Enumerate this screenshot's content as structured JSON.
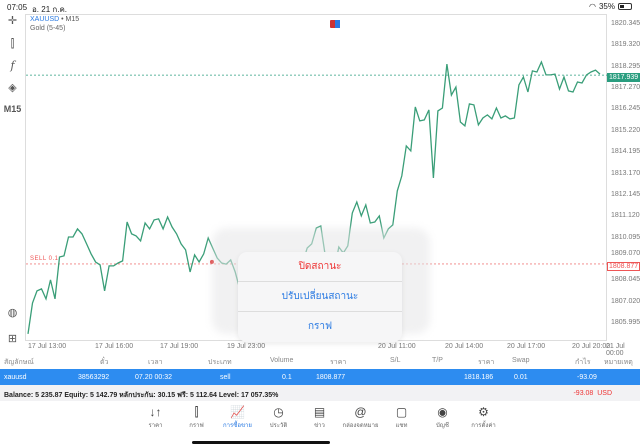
{
  "status": {
    "time": "07:05",
    "date": "อ. 21 ก.ค.",
    "battery": "35%"
  },
  "toolbar": {
    "timeframe": "M15",
    "function_label": "f"
  },
  "chart_header": {
    "symbol": "XAUUSD",
    "separator": " • ",
    "timeframe": "M15",
    "description": "Gold (5-45)"
  },
  "price_axis": [
    "1820.345",
    "1819.320",
    "1818.295",
    "1817.270",
    "1816.245",
    "1815.220",
    "1814.195",
    "1813.170",
    "1812.145",
    "1811.120",
    "1810.095",
    "1809.070",
    "1808.045",
    "1807.020",
    "1805.995"
  ],
  "last_price": "1817.939",
  "sell_price": "1808.877",
  "sell_label": "SELL 0.1",
  "time_axis": [
    "17 Jul 13:00",
    "17 Jul 16:00",
    "17 Jul 19:00",
    "19 Jul 23:00",
    "20 Jul 11:00",
    "20 Jul 14:00",
    "20 Jul 17:00",
    "20 Jul 20:00",
    "21 Jul 00:00"
  ],
  "chart_data": {
    "type": "line",
    "title": "XAUUSD M15",
    "ylim": [
      1805.2,
      1821.5
    ],
    "last": 1817.939,
    "sell_level": 1808.877,
    "values": [
      1805.52,
      1807.0,
      1807.58,
      1807.68,
      1807.2,
      1808.11,
      1807.2,
      1809.21,
      1809.26,
      1810.17,
      1810.17,
      1810.56,
      1810.32,
      1809.84,
      1809.36,
      1808.97,
      1808.83,
      1807.58,
      1808.78,
      1808.78,
      1808.92,
      1809.02,
      1810.89,
      1810.32,
      1810.22,
      1809.98,
      1810.84,
      1810.56,
      1810.99,
      1811.04,
      1810.56,
      1811.13,
      1810.65,
      1810.32,
      1809.84,
      1809.55,
      1808.49,
      1809.31,
      1808.97,
      1809.36,
      1810.12,
      1809.64,
      1809.16,
      1808.92,
      1808.87,
      1809.07,
      1808.49,
      1807.68,
      1806.14,
      1808.06,
      1807.29,
      1807.2,
      1806.72,
      1807.1,
      1806.72,
      1807.29,
      1807.1,
      1807.58,
      1807.34,
      1807.82,
      1808.3,
      1808.92,
      1809.64,
      1809.84,
      1810.6,
      1810.7,
      1809.26,
      1809.4,
      1808.54,
      1809.69,
      1809.4,
      1809.74,
      1811.32,
      1811.85,
      1811.18,
      1811.71,
      1810.84,
      1810.89,
      1811.18,
      1810.12,
      1810.56,
      1810.75,
      1812.38,
      1813.1,
      1814.54,
      1814.3,
      1816.41,
      1815.74,
      1815.79,
      1816.27,
      1813.0,
      1816.22,
      1816.36,
      1818.47,
      1816.98,
      1817.37,
      1815.69,
      1815.5,
      1816.56,
      1816.51,
      1815.55,
      1815.88,
      1816.03,
      1815.84,
      1816.36,
      1815.88,
      1815.98,
      1815.84,
      1815.88,
      1817.47,
      1817.85,
      1817.13,
      1818.14,
      1818.09,
      1818.57,
      1817.95,
      1817.95,
      1817.99,
      1817.27,
      1817.85,
      1817.18,
      1817.13,
      1817.61,
      1817.56,
      1817.95,
      1818.09,
      1818.18,
      1817.99
    ]
  },
  "table": {
    "headers": [
      "สัญลักษณ์",
      "ตั๋ว",
      "เวลา",
      "ประเภท",
      "Volume",
      "ราคา",
      "S/L",
      "T/P",
      "ราคา",
      "Swap",
      "กำไร",
      "หมายเหตุ"
    ],
    "row": {
      "symbol": "xauusd",
      "ticket": "38563292",
      "time": "07.20 00:32",
      "type": "sell",
      "volume": "0.1",
      "open_price": "1808.877",
      "current_price": "1818.186",
      "swap": "0.01",
      "profit": "-93.09"
    }
  },
  "balance": {
    "text": "Balance: 5 235.87 Equity: 5 142.79 หลักประกัน: 30.15 ฟรี: 5 112.64 Level: 17 057.35%",
    "pl": "-93.08",
    "currency": "USD"
  },
  "popup": {
    "close": "ปิดสถานะ",
    "modify": "ปรับเปลี่ยนสถานะ",
    "chart": "กราฟ"
  },
  "tabs": [
    {
      "label": "ราคา",
      "icon": "↓↑"
    },
    {
      "label": "กราฟ",
      "icon": "⫿"
    },
    {
      "label": "การซื้อขาย",
      "icon": "📈"
    },
    {
      "label": "ประวัติ",
      "icon": "◷"
    },
    {
      "label": "ข่าว",
      "icon": "▤"
    },
    {
      "label": "กล่องจดหมาย",
      "icon": "@"
    },
    {
      "label": "แชท",
      "icon": "▢"
    },
    {
      "label": "บัญชี",
      "icon": "◉"
    },
    {
      "label": "การตั้งค่า",
      "icon": "⚙"
    }
  ],
  "colors": {
    "line": "#3a9e78",
    "accent": "#2d8cf0",
    "sell": "#e55555"
  }
}
